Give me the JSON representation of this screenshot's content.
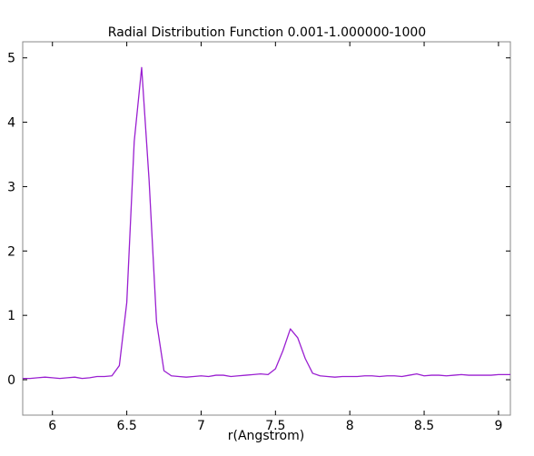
{
  "chart_data": {
    "type": "line",
    "title": "Radial Distribution Function 0.001-1.000000-1000",
    "xlabel": "r(Angstrom)",
    "ylabel": "",
    "xlim": [
      5.8,
      9.08
    ],
    "ylim": [
      -0.55,
      5.25
    ],
    "grid": false,
    "x_ticks": [
      6,
      6.5,
      7,
      7.5,
      8,
      8.5,
      9
    ],
    "x_tick_labels": [
      "6",
      "6.5",
      "7",
      "7.5",
      "8",
      "8.5",
      "9"
    ],
    "y_ticks": [
      0,
      1,
      2,
      3,
      4,
      5
    ],
    "y_tick_labels": [
      "0",
      "1",
      "2",
      "3",
      "4",
      "5"
    ],
    "series": [
      {
        "color": "#9a1fd1",
        "x": [
          5.8,
          5.85,
          5.9,
          5.95,
          6.0,
          6.05,
          6.1,
          6.15,
          6.2,
          6.25,
          6.3,
          6.35,
          6.4,
          6.45,
          6.5,
          6.55,
          6.6,
          6.65,
          6.7,
          6.75,
          6.8,
          6.85,
          6.9,
          6.95,
          7.0,
          7.05,
          7.1,
          7.15,
          7.2,
          7.25,
          7.3,
          7.35,
          7.4,
          7.45,
          7.5,
          7.55,
          7.6,
          7.65,
          7.7,
          7.75,
          7.8,
          7.85,
          7.9,
          7.95,
          8.0,
          8.05,
          8.1,
          8.15,
          8.2,
          8.25,
          8.3,
          8.35,
          8.4,
          8.45,
          8.5,
          8.55,
          8.6,
          8.65,
          8.7,
          8.75,
          8.8,
          8.85,
          8.9,
          8.95,
          9.0,
          9.05,
          9.08
        ],
        "y": [
          0.02,
          0.02,
          0.03,
          0.04,
          0.03,
          0.02,
          0.03,
          0.04,
          0.02,
          0.03,
          0.05,
          0.05,
          0.06,
          0.22,
          1.2,
          3.7,
          4.85,
          3.1,
          0.9,
          0.14,
          0.06,
          0.05,
          0.04,
          0.05,
          0.06,
          0.05,
          0.07,
          0.07,
          0.05,
          0.06,
          0.07,
          0.08,
          0.09,
          0.08,
          0.17,
          0.45,
          0.79,
          0.65,
          0.33,
          0.1,
          0.06,
          0.05,
          0.04,
          0.05,
          0.05,
          0.05,
          0.06,
          0.06,
          0.05,
          0.06,
          0.06,
          0.05,
          0.07,
          0.09,
          0.06,
          0.07,
          0.07,
          0.06,
          0.07,
          0.08,
          0.07,
          0.07,
          0.07,
          0.07,
          0.08,
          0.08,
          0.08
        ]
      }
    ]
  }
}
